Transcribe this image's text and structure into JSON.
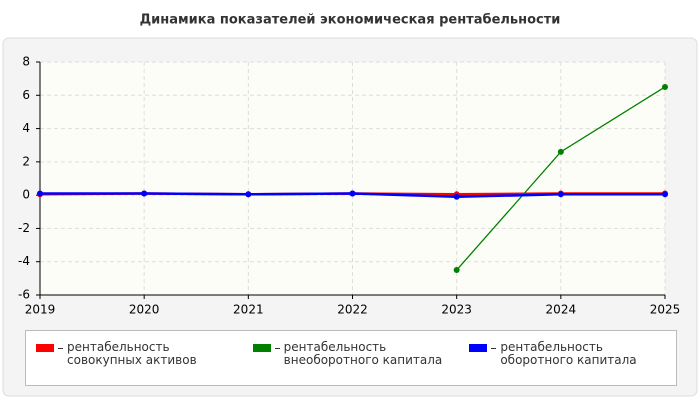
{
  "chart_data": {
    "type": "line",
    "title": "Динамика показателей экономическая рентабельности",
    "categories": [
      "2019",
      "2020",
      "2021",
      "2022",
      "2023",
      "2024",
      "2025"
    ],
    "series": [
      {
        "name": "рентабельность совокупных активов",
        "color": "#ff0000",
        "values": [
          0.05,
          0.1,
          0.05,
          0.1,
          0.05,
          0.1,
          0.1
        ]
      },
      {
        "name": "рентабельность внеоборотного капитала",
        "color": "#008000",
        "values": [
          null,
          null,
          null,
          null,
          -4.5,
          2.6,
          6.5
        ]
      },
      {
        "name": "рентабельность оборотного капитала",
        "color": "#0000ff",
        "values": [
          0.1,
          0.1,
          0.05,
          0.1,
          -0.1,
          0.05,
          0.05
        ]
      }
    ],
    "ylim": [
      -6,
      8
    ],
    "yticks": [
      -6,
      -4,
      -2,
      0,
      2,
      4,
      6,
      8
    ],
    "grid": true
  }
}
